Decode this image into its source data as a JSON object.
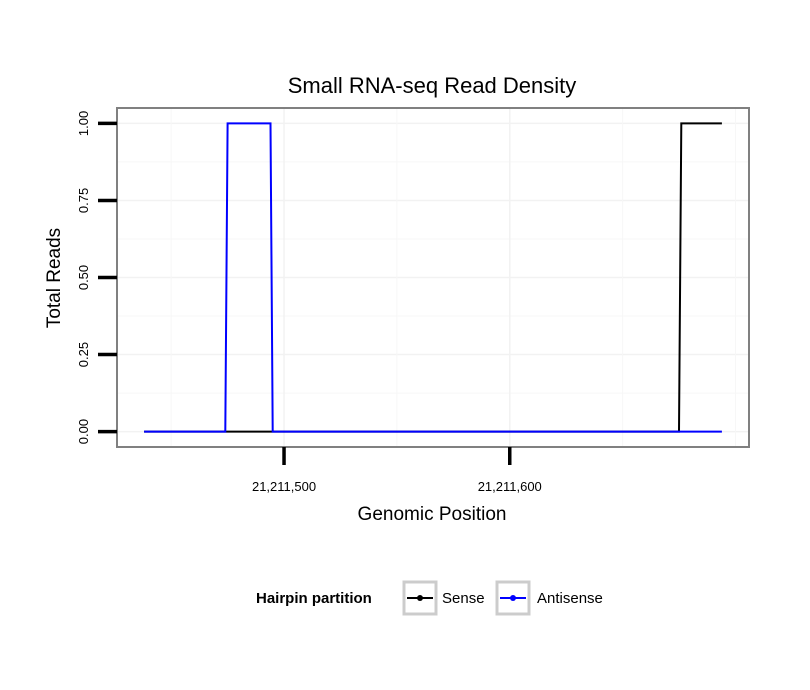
{
  "chart_data": {
    "type": "line",
    "step": true,
    "title": "Small RNA-seq Read Density",
    "xlabel": "Genomic Position",
    "ylabel": "Total Reads",
    "xlim": [
      21211426,
      21211706
    ],
    "ylim": [
      -0.05,
      1.05
    ],
    "x_ticks": [
      {
        "value": 21211500,
        "label": "21,211,500"
      },
      {
        "value": 21211600,
        "label": "21,211,600"
      }
    ],
    "y_ticks": [
      {
        "value": 0,
        "label": "0.00"
      },
      {
        "value": 0.25,
        "label": "0.25"
      },
      {
        "value": 0.5,
        "label": "0.50"
      },
      {
        "value": 0.75,
        "label": "0.75"
      },
      {
        "value": 1,
        "label": "1.00"
      }
    ],
    "grid": true,
    "legend": {
      "title": "Hairpin partition",
      "position": "bottom"
    },
    "series": [
      {
        "name": "Sense",
        "color": "#000000",
        "x": [
          21211438,
          21211675,
          21211676,
          21211694
        ],
        "y": [
          0,
          0,
          1,
          1
        ]
      },
      {
        "name": "Antisense",
        "color": "#0000ff",
        "x": [
          21211438,
          21211474,
          21211475,
          21211494,
          21211495,
          21211694
        ],
        "y": [
          0,
          0,
          1,
          1,
          0,
          0
        ]
      }
    ]
  }
}
